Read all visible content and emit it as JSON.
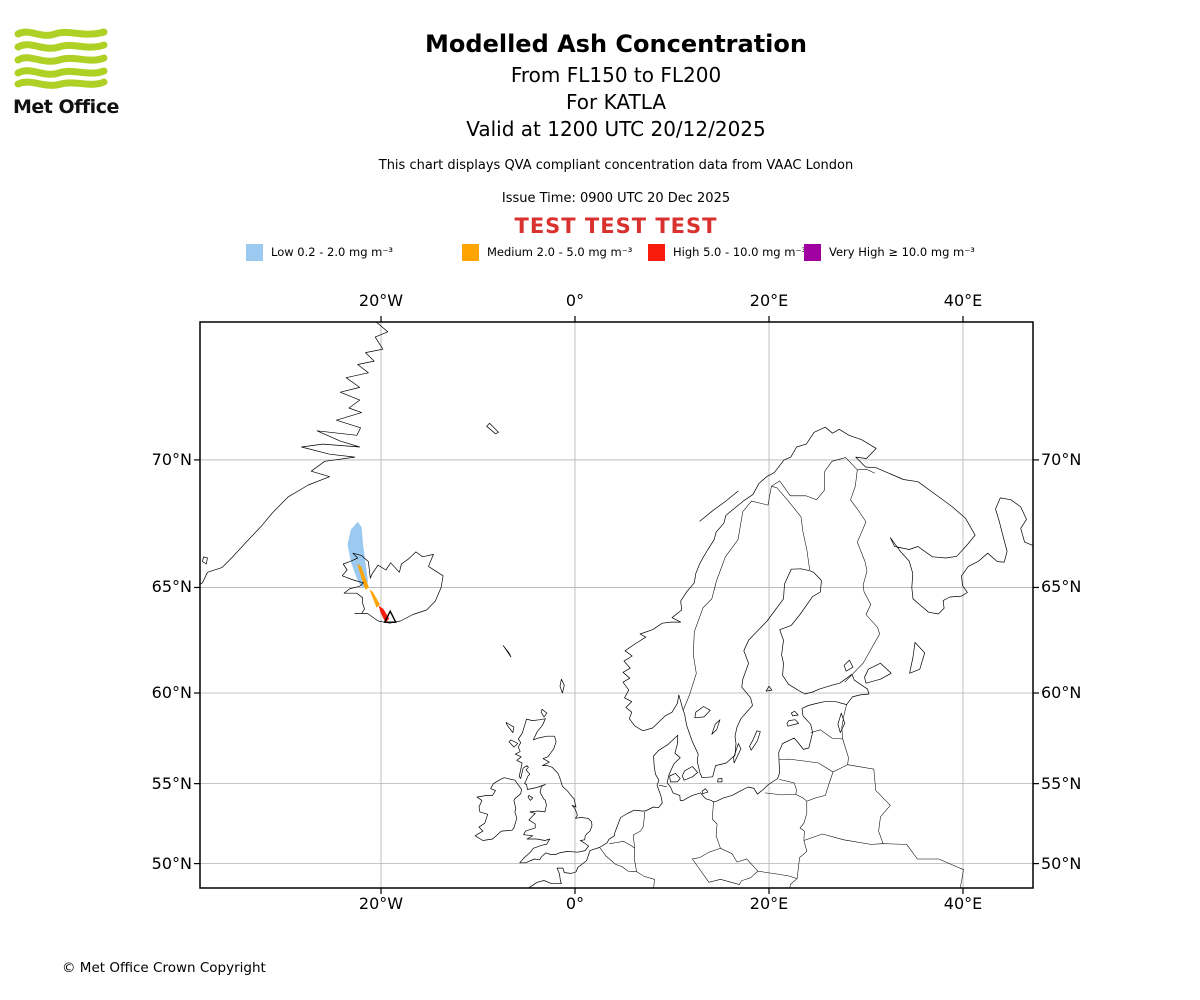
{
  "logo": {
    "name": "Met Office"
  },
  "header": {
    "title": "Modelled Ash Concentration",
    "flight_levels": "From FL150 to FL200",
    "volcano_line": "For KATLA",
    "valid_line": "Valid at 1200 UTC 20/12/2025",
    "note": "This chart displays QVA compliant concentration data from VAAC London",
    "issue_time": "Issue Time: 0900 UTC 20 Dec 2025",
    "test_banner": "TEST TEST TEST",
    "test_color": "#d9322e"
  },
  "legend": {
    "items": [
      {
        "label": "Low 0.2 - 2.0 mg m⁻³",
        "color": "#9cc9f0"
      },
      {
        "label": "Medium 2.0 - 5.0 mg m⁻³",
        "color": "#ffa400"
      },
      {
        "label": "High 5.0 - 10.0 mg m⁻³",
        "color": "#f91c0c"
      },
      {
        "label": "Very High ≥ 10.0 mg m⁻³",
        "color": "#a000a0"
      }
    ]
  },
  "map": {
    "gridline_color": "#b3b3b3",
    "lon_ticks": [
      {
        "label": "20°W",
        "lon": -20
      },
      {
        "label": "0°",
        "lon": 0
      },
      {
        "label": "20°E",
        "lon": 20
      },
      {
        "label": "40°E",
        "lon": 40
      }
    ],
    "lat_ticks": [
      {
        "label": "70°N",
        "lat": 70
      },
      {
        "label": "65°N",
        "lat": 65
      },
      {
        "label": "60°N",
        "lat": 60
      },
      {
        "label": "55°N",
        "lat": 55
      },
      {
        "label": "50°N",
        "lat": 50
      }
    ]
  },
  "chart_data": {
    "type": "ash-concentration-map",
    "projection": "mercator",
    "lon_range": [
      -38.6,
      47.2
    ],
    "lat_range": [
      48.4,
      74.4
    ],
    "volcano": {
      "name": "KATLA",
      "lat": 63.63,
      "lon": -19.05
    },
    "plume": [
      {
        "level": "Low",
        "range_mg_m3": "0.2 - 2.0",
        "color": "#9cc9f0",
        "polygon": [
          [
            -22.4,
            67.7
          ],
          [
            -23.1,
            67.4
          ],
          [
            -23.45,
            66.8
          ],
          [
            -23.1,
            66.1
          ],
          [
            -22.6,
            65.5
          ],
          [
            -22.1,
            65.05
          ],
          [
            -21.5,
            64.95
          ],
          [
            -21.35,
            65.3
          ],
          [
            -21.55,
            65.9
          ],
          [
            -21.85,
            66.8
          ],
          [
            -22.0,
            67.5
          ]
        ]
      },
      {
        "level": "Medium",
        "range_mg_m3": "2.0 - 5.0",
        "color": "#ffa400",
        "polygon": [
          [
            -22.45,
            66.0
          ],
          [
            -22.05,
            65.9
          ],
          [
            -21.25,
            65.0
          ],
          [
            -21.62,
            64.9
          ]
        ]
      },
      {
        "level": "Medium",
        "range_mg_m3": "2.0 - 5.0",
        "color": "#ffa400",
        "polygon": [
          [
            -21.2,
            64.92
          ],
          [
            -20.85,
            64.8
          ],
          [
            -20.1,
            64.25
          ],
          [
            -20.45,
            64.1
          ]
        ]
      },
      {
        "level": "High",
        "range_mg_m3": "5.0 - 10.0",
        "color": "#f91c0c",
        "polygon": [
          [
            -20.25,
            64.2
          ],
          [
            -19.75,
            64.05
          ],
          [
            -19.15,
            63.6
          ],
          [
            -19.55,
            63.42
          ],
          [
            -20.05,
            63.9
          ]
        ]
      }
    ]
  },
  "footer": {
    "copyright": "© Met Office Crown Copyright"
  }
}
